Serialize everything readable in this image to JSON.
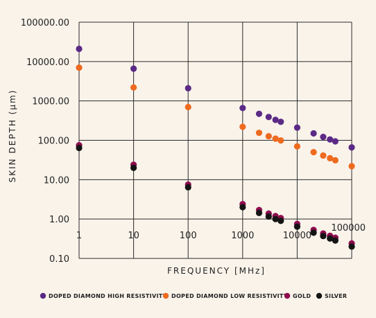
{
  "chart_data": {
    "type": "scatter",
    "xlabel": "FREQUENCY [MHz]",
    "ylabel": "SKIN DEPTH (μm)",
    "x_scale": "log",
    "y_scale": "log",
    "xlim": [
      1,
      100000
    ],
    "ylim": [
      0.1,
      100000
    ],
    "x_ticks": [
      {
        "value": 1,
        "label": "1"
      },
      {
        "value": 10,
        "label": "10"
      },
      {
        "value": 100,
        "label": "100"
      },
      {
        "value": 1000,
        "label": "1000"
      },
      {
        "value": 10000,
        "label": "10000"
      },
      {
        "value": 100000,
        "label": "100000"
      }
    ],
    "y_ticks": [
      {
        "value": 100000,
        "label": "100000.00"
      },
      {
        "value": 10000,
        "label": "10000.00"
      },
      {
        "value": 1000,
        "label": "1000.00"
      },
      {
        "value": 100,
        "label": "100.00"
      },
      {
        "value": 10,
        "label": "10.00"
      },
      {
        "value": 1,
        "label": "1.00"
      },
      {
        "value": 0.1,
        "label": "0.10"
      }
    ],
    "grid": true,
    "legend_position": "bottom",
    "series": [
      {
        "name": "DOPED DIAMOND HIGH RESISTIVITY",
        "color": "#5b2a86",
        "points": [
          [
            1,
            21000
          ],
          [
            10,
            6600
          ],
          [
            100,
            2100
          ],
          [
            1000,
            660
          ],
          [
            2000,
            470
          ],
          [
            3000,
            390
          ],
          [
            4000,
            330
          ],
          [
            5000,
            295
          ],
          [
            10000,
            210
          ],
          [
            20000,
            150
          ],
          [
            30000,
            122
          ],
          [
            40000,
            105
          ],
          [
            50000,
            94
          ],
          [
            100000,
            66
          ]
        ]
      },
      {
        "name": "DOPED DIAMOND LOW RESISTIVITY",
        "color": "#ee6a1f",
        "points": [
          [
            1,
            7000
          ],
          [
            10,
            2200
          ],
          [
            100,
            700
          ],
          [
            1000,
            220
          ],
          [
            2000,
            155
          ],
          [
            3000,
            127
          ],
          [
            4000,
            110
          ],
          [
            5000,
            99
          ],
          [
            10000,
            70
          ],
          [
            20000,
            50
          ],
          [
            30000,
            41
          ],
          [
            40000,
            35
          ],
          [
            50000,
            31
          ],
          [
            100000,
            22
          ]
        ]
      },
      {
        "name": "GOLD",
        "color": "#8e0d4f",
        "points": [
          [
            1,
            75
          ],
          [
            10,
            24
          ],
          [
            100,
            7.5
          ],
          [
            1000,
            2.4
          ],
          [
            2000,
            1.7
          ],
          [
            3000,
            1.38
          ],
          [
            4000,
            1.19
          ],
          [
            5000,
            1.06
          ],
          [
            10000,
            0.75
          ],
          [
            20000,
            0.53
          ],
          [
            30000,
            0.43
          ],
          [
            40000,
            0.375
          ],
          [
            50000,
            0.335
          ],
          [
            100000,
            0.24
          ]
        ]
      },
      {
        "name": "SILVER",
        "color": "#141414",
        "points": [
          [
            1,
            64
          ],
          [
            10,
            20
          ],
          [
            100,
            6.4
          ],
          [
            1000,
            2.0
          ],
          [
            2000,
            1.43
          ],
          [
            3000,
            1.16
          ],
          [
            4000,
            1.0
          ],
          [
            5000,
            0.9
          ],
          [
            10000,
            0.64
          ],
          [
            20000,
            0.45
          ],
          [
            30000,
            0.37
          ],
          [
            40000,
            0.32
          ],
          [
            50000,
            0.285
          ],
          [
            100000,
            0.2
          ]
        ]
      }
    ]
  }
}
